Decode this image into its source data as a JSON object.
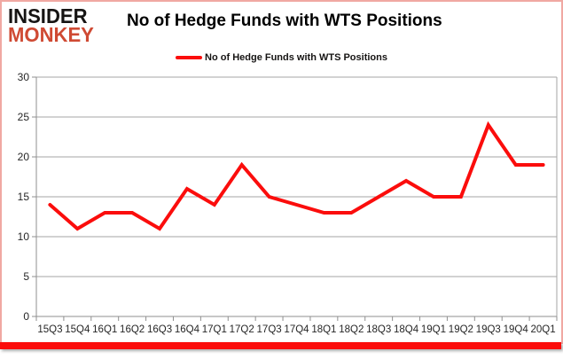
{
  "logo": {
    "line1": "INSIDER",
    "line2": "MONKEY"
  },
  "header": {
    "title": "No of Hedge Funds with WTS Positions"
  },
  "legend": {
    "label": "No of Hedge Funds with WTS Positions"
  },
  "colors": {
    "series": "#fb0d0c",
    "logo_accent": "#cf4a33",
    "gridline": "#a6a6a6",
    "axis": "#8f8f8f",
    "tick_text": "#262626",
    "frame_border": "#f0a8a2",
    "bottom_bar": "#fb0d0c"
  },
  "chart_data": {
    "type": "line",
    "title": "No of Hedge Funds with WTS Positions",
    "categories": [
      "15Q3",
      "15Q4",
      "16Q1",
      "16Q2",
      "16Q3",
      "16Q4",
      "17Q1",
      "17Q2",
      "17Q3",
      "17Q4",
      "18Q1",
      "18Q2",
      "18Q3",
      "18Q4",
      "19Q1",
      "19Q2",
      "19Q3",
      "19Q4",
      "20Q1"
    ],
    "series": [
      {
        "name": "No of Hedge Funds with WTS Positions",
        "color": "#fb0d0c",
        "values": [
          14,
          11,
          13,
          13,
          11,
          16,
          14,
          19,
          15,
          14,
          13,
          13,
          15,
          17,
          15,
          15,
          24,
          19,
          19
        ]
      }
    ],
    "xlabel": "",
    "ylabel": "",
    "ylim": [
      0,
      30
    ],
    "yticks": [
      0,
      5,
      10,
      15,
      20,
      25,
      30
    ],
    "grid": true,
    "legend_position": "top-center"
  }
}
